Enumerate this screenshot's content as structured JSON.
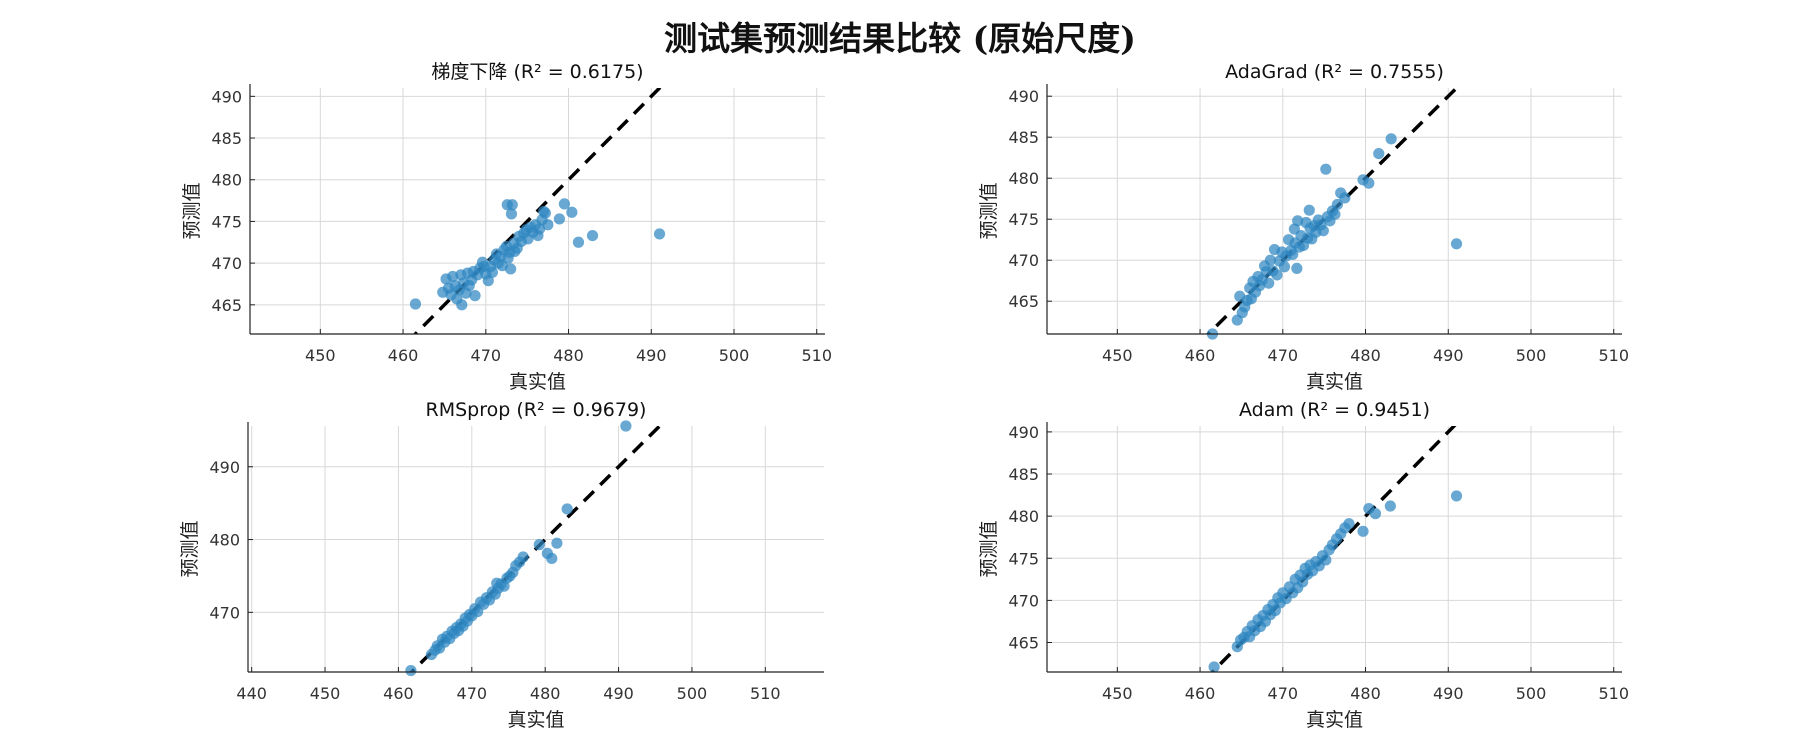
{
  "title": "测试集预测结果比较 (原始尺度)",
  "colors": {
    "point": "#2E86C1",
    "diagonal": "#000000",
    "grid": "#d8d8d8",
    "axis": "#222222"
  },
  "chart_data": [
    {
      "type": "scatter",
      "title": "梯度下降 (R² = 0.6175)",
      "xlabel": "真实值",
      "ylabel": "预测值",
      "xlim": [
        441.5,
        511
      ],
      "ylim": [
        461.5,
        491
      ],
      "xticks": [
        450,
        460,
        470,
        480,
        490,
        500,
        510
      ],
      "yticks": [
        465,
        470,
        475,
        480,
        485,
        490
      ],
      "grid": true,
      "points": [
        [
          461.5,
          465.1
        ],
        [
          464.8,
          466.5
        ],
        [
          465.2,
          468.1
        ],
        [
          465.5,
          467.0
        ],
        [
          465.8,
          466.2
        ],
        [
          466.0,
          468.4
        ],
        [
          466.3,
          467.3
        ],
        [
          466.5,
          465.7
        ],
        [
          466.8,
          466.8
        ],
        [
          467.0,
          468.6
        ],
        [
          467.1,
          465.0
        ],
        [
          467.3,
          467.6
        ],
        [
          467.6,
          466.4
        ],
        [
          467.8,
          468.8
        ],
        [
          468.0,
          467.3
        ],
        [
          468.3,
          468.0
        ],
        [
          468.5,
          469.0
        ],
        [
          468.7,
          466.1
        ],
        [
          469.0,
          468.6
        ],
        [
          469.3,
          469.4
        ],
        [
          469.6,
          470.1
        ],
        [
          469.8,
          469.6
        ],
        [
          470.0,
          468.7
        ],
        [
          470.3,
          467.9
        ],
        [
          470.6,
          469.6
        ],
        [
          470.8,
          468.9
        ],
        [
          471.0,
          470.4
        ],
        [
          471.3,
          471.1
        ],
        [
          471.5,
          470.0
        ],
        [
          471.8,
          470.8
        ],
        [
          472.0,
          469.7
        ],
        [
          472.2,
          471.6
        ],
        [
          472.5,
          472.0
        ],
        [
          472.6,
          477.0
        ],
        [
          472.7,
          470.6
        ],
        [
          472.9,
          471.3
        ],
        [
          473.0,
          469.3
        ],
        [
          473.1,
          475.9
        ],
        [
          473.2,
          477.0
        ],
        [
          473.4,
          472.4
        ],
        [
          473.5,
          471.4
        ],
        [
          473.8,
          471.8
        ],
        [
          474.0,
          473.2
        ],
        [
          474.3,
          472.6
        ],
        [
          474.6,
          473.6
        ],
        [
          474.9,
          474.0
        ],
        [
          475.1,
          472.9
        ],
        [
          475.4,
          474.3
        ],
        [
          475.7,
          473.7
        ],
        [
          476.0,
          474.6
        ],
        [
          476.3,
          473.3
        ],
        [
          476.5,
          474.1
        ],
        [
          476.8,
          475.2
        ],
        [
          477.0,
          476.2
        ],
        [
          477.2,
          476.0
        ],
        [
          477.5,
          474.6
        ],
        [
          478.9,
          475.3
        ],
        [
          479.5,
          477.1
        ],
        [
          480.4,
          476.1
        ],
        [
          481.2,
          472.5
        ],
        [
          482.9,
          473.3
        ],
        [
          491.0,
          473.5
        ]
      ]
    },
    {
      "type": "scatter",
      "title": "AdaGrad (R² = 0.7555)",
      "xlabel": "真实值",
      "ylabel": "预测值",
      "xlim": [
        441.5,
        511
      ],
      "ylim": [
        461,
        491
      ],
      "xticks": [
        450,
        460,
        470,
        480,
        490,
        500,
        510
      ],
      "yticks": [
        465,
        470,
        475,
        480,
        485,
        490
      ],
      "grid": true,
      "points": [
        [
          461.5,
          461.0
        ],
        [
          464.5,
          462.7
        ],
        [
          464.8,
          465.6
        ],
        [
          465.1,
          463.6
        ],
        [
          465.4,
          464.3
        ],
        [
          465.7,
          465.1
        ],
        [
          466.0,
          466.6
        ],
        [
          466.2,
          465.3
        ],
        [
          466.4,
          467.4
        ],
        [
          466.7,
          466.1
        ],
        [
          467.0,
          468.0
        ],
        [
          467.2,
          466.9
        ],
        [
          467.5,
          467.6
        ],
        [
          467.8,
          469.3
        ],
        [
          468.0,
          468.6
        ],
        [
          468.3,
          467.2
        ],
        [
          468.5,
          470.0
        ],
        [
          468.8,
          468.7
        ],
        [
          469.0,
          471.3
        ],
        [
          469.3,
          468.2
        ],
        [
          469.6,
          469.9
        ],
        [
          469.9,
          471.0
        ],
        [
          470.2,
          469.2
        ],
        [
          470.4,
          470.5
        ],
        [
          470.7,
          472.5
        ],
        [
          471.0,
          471.2
        ],
        [
          471.2,
          470.7
        ],
        [
          471.4,
          473.8
        ],
        [
          471.5,
          472.1
        ],
        [
          471.7,
          469.0
        ],
        [
          471.8,
          474.8
        ],
        [
          472.0,
          471.6
        ],
        [
          472.2,
          473.0
        ],
        [
          472.5,
          471.8
        ],
        [
          472.8,
          474.6
        ],
        [
          473.0,
          472.7
        ],
        [
          473.2,
          476.1
        ],
        [
          473.3,
          473.9
        ],
        [
          473.5,
          472.6
        ],
        [
          473.8,
          474.2
        ],
        [
          474.0,
          473.4
        ],
        [
          474.3,
          474.9
        ],
        [
          474.6,
          474.3
        ],
        [
          474.9,
          473.6
        ],
        [
          475.2,
          481.1
        ],
        [
          475.4,
          475.3
        ],
        [
          475.7,
          474.8
        ],
        [
          476.0,
          476.0
        ],
        [
          476.3,
          475.6
        ],
        [
          476.6,
          476.8
        ],
        [
          477.0,
          478.2
        ],
        [
          477.5,
          477.6
        ],
        [
          479.7,
          479.8
        ],
        [
          480.4,
          479.4
        ],
        [
          481.6,
          483.0
        ],
        [
          483.1,
          484.8
        ],
        [
          491.0,
          472.0
        ]
      ]
    },
    {
      "type": "scatter",
      "title": "RMSprop (R² = 0.9679)",
      "xlabel": "真实值",
      "ylabel": "预测值",
      "xlim": [
        439.5,
        518
      ],
      "ylim": [
        461.8,
        495.6
      ],
      "xticks": [
        440,
        450,
        460,
        470,
        480,
        490,
        500,
        510
      ],
      "yticks": [
        470,
        480,
        490
      ],
      "grid": true,
      "points": [
        [
          461.7,
          462.0
        ],
        [
          464.5,
          464.2
        ],
        [
          465.0,
          464.8
        ],
        [
          465.3,
          465.4
        ],
        [
          465.6,
          465.1
        ],
        [
          466.0,
          466.3
        ],
        [
          466.3,
          465.9
        ],
        [
          466.6,
          466.7
        ],
        [
          467.0,
          466.4
        ],
        [
          467.3,
          467.4
        ],
        [
          467.6,
          467.1
        ],
        [
          467.9,
          467.9
        ],
        [
          468.2,
          467.5
        ],
        [
          468.5,
          468.4
        ],
        [
          468.8,
          468.1
        ],
        [
          469.1,
          469.2
        ],
        [
          469.4,
          468.8
        ],
        [
          469.7,
          469.7
        ],
        [
          470.0,
          469.5
        ],
        [
          470.4,
          470.5
        ],
        [
          470.8,
          470.1
        ],
        [
          471.2,
          471.4
        ],
        [
          471.6,
          471.1
        ],
        [
          472.0,
          472.0
        ],
        [
          472.4,
          471.7
        ],
        [
          472.8,
          472.8
        ],
        [
          473.2,
          472.5
        ],
        [
          473.4,
          474.0
        ],
        [
          473.6,
          473.3
        ],
        [
          474.0,
          473.9
        ],
        [
          474.4,
          473.6
        ],
        [
          474.8,
          474.7
        ],
        [
          475.2,
          475.0
        ],
        [
          475.6,
          475.5
        ],
        [
          476.0,
          476.4
        ],
        [
          476.5,
          476.9
        ],
        [
          477.0,
          477.6
        ],
        [
          479.2,
          479.3
        ],
        [
          480.3,
          478.1
        ],
        [
          480.9,
          477.4
        ],
        [
          481.6,
          479.5
        ],
        [
          483.0,
          484.2
        ],
        [
          491.0,
          495.6
        ]
      ]
    },
    {
      "type": "scatter",
      "title": "Adam (R² = 0.9451)",
      "xlabel": "真实值",
      "ylabel": "预测值",
      "xlim": [
        441.5,
        511
      ],
      "ylim": [
        461.5,
        490.7
      ],
      "xticks": [
        450,
        460,
        470,
        480,
        490,
        500,
        510
      ],
      "yticks": [
        465,
        470,
        475,
        480,
        485,
        490
      ],
      "grid": true,
      "points": [
        [
          461.7,
          462.1
        ],
        [
          464.5,
          464.5
        ],
        [
          464.9,
          465.3
        ],
        [
          465.3,
          465.6
        ],
        [
          465.7,
          466.3
        ],
        [
          466.0,
          465.7
        ],
        [
          466.3,
          467.0
        ],
        [
          466.6,
          466.4
        ],
        [
          467.0,
          467.7
        ],
        [
          467.3,
          466.9
        ],
        [
          467.6,
          468.2
        ],
        [
          467.9,
          467.5
        ],
        [
          468.2,
          468.9
        ],
        [
          468.5,
          468.3
        ],
        [
          468.8,
          469.5
        ],
        [
          469.1,
          468.8
        ],
        [
          469.4,
          470.3
        ],
        [
          469.7,
          469.7
        ],
        [
          470.0,
          470.9
        ],
        [
          470.4,
          470.2
        ],
        [
          470.8,
          471.6
        ],
        [
          471.2,
          470.9
        ],
        [
          471.5,
          472.5
        ],
        [
          471.8,
          471.5
        ],
        [
          472.1,
          473.0
        ],
        [
          472.4,
          472.2
        ],
        [
          472.7,
          473.8
        ],
        [
          473.0,
          473.1
        ],
        [
          473.3,
          474.2
        ],
        [
          473.6,
          473.5
        ],
        [
          474.0,
          474.6
        ],
        [
          474.4,
          474.1
        ],
        [
          474.8,
          475.3
        ],
        [
          475.2,
          474.8
        ],
        [
          475.6,
          476.0
        ],
        [
          476.0,
          476.6
        ],
        [
          476.5,
          477.3
        ],
        [
          477.0,
          477.9
        ],
        [
          477.5,
          478.6
        ],
        [
          478.0,
          479.1
        ],
        [
          479.7,
          478.2
        ],
        [
          480.4,
          480.9
        ],
        [
          481.2,
          480.3
        ],
        [
          483.0,
          481.2
        ],
        [
          491.0,
          482.4
        ]
      ]
    }
  ]
}
